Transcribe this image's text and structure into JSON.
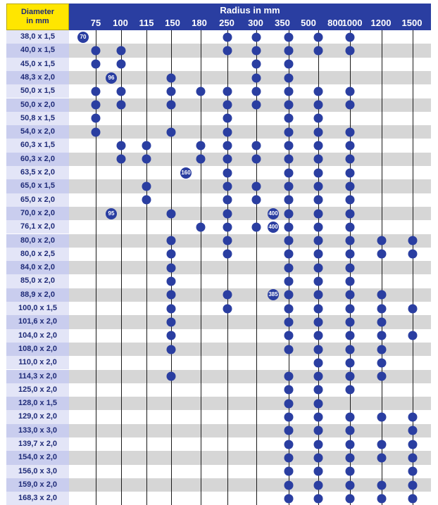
{
  "header": {
    "diameter_line1": "Diameter",
    "diameter_line2": "in mm",
    "title": "Radius in mm"
  },
  "radii": [
    "75",
    "100",
    "115",
    "150",
    "180",
    "250",
    "300",
    "350",
    "500",
    "800",
    "1000",
    "1200",
    "1500"
  ],
  "rows": [
    {
      "diameter": "38,0 x 1,5",
      "marks": {
        "75": "70",
        "250": true,
        "350": true,
        "500": true,
        "800": true,
        "1000": true
      }
    },
    {
      "diameter": "40,0 x 1,5",
      "marks": {
        "75": true,
        "100": true,
        "250": true,
        "350": true,
        "500": true,
        "800": true,
        "1000": true
      }
    },
    {
      "diameter": "45,0 x 1,5",
      "marks": {
        "75": true,
        "100": true,
        "350": true,
        "500": true
      }
    },
    {
      "diameter": "48,3 x 2,0",
      "marks": {
        "100": "96",
        "150": true,
        "350": true,
        "500": true
      }
    },
    {
      "diameter": "50,0 x 1,5",
      "marks": {
        "75": true,
        "100": true,
        "150": true,
        "180": true,
        "250": true,
        "350": true,
        "500": true,
        "800": true,
        "1000": true
      }
    },
    {
      "diameter": "50,0 x 2,0",
      "marks": {
        "75": true,
        "100": true,
        "150": true,
        "250": true,
        "350": true,
        "500": true,
        "800": true,
        "1000": true
      }
    },
    {
      "diameter": "50,8 x 1,5",
      "marks": {
        "75": true,
        "250": true,
        "500": true,
        "800": true
      }
    },
    {
      "diameter": "54,0 x 2,0",
      "marks": {
        "75": true,
        "150": true,
        "250": true,
        "500": true,
        "800": true,
        "1000": true
      }
    },
    {
      "diameter": "60,3 x 1,5",
      "marks": {
        "100": true,
        "115": true,
        "180": true,
        "250": true,
        "350": true,
        "500": true,
        "800": true,
        "1000": true
      }
    },
    {
      "diameter": "60,3 x 2,0",
      "marks": {
        "100": true,
        "115": true,
        "180": true,
        "250": true,
        "350": true,
        "500": true,
        "800": true,
        "1000": true
      }
    },
    {
      "diameter": "63,5 x 2,0",
      "marks": {
        "180": "160",
        "250": true,
        "500": true,
        "800": true,
        "1000": true
      }
    },
    {
      "diameter": "65,0 x 1,5",
      "marks": {
        "115": true,
        "250": true,
        "350": true,
        "500": true,
        "800": true,
        "1000": true
      }
    },
    {
      "diameter": "65,0 x 2,0",
      "marks": {
        "115": true,
        "250": true,
        "350": true,
        "500": true,
        "800": true,
        "1000": true
      }
    },
    {
      "diameter": "70,0 x 2,0",
      "marks": {
        "100": "95",
        "150": true,
        "250": true,
        "350": "400",
        "500": true,
        "800": true,
        "1000": true
      }
    },
    {
      "diameter": "76,1 x 2,0",
      "marks": {
        "180": true,
        "250": true,
        "300": true,
        "350": "400",
        "500": true,
        "800": true,
        "1000": true
      }
    },
    {
      "diameter": "80,0 x 2,0",
      "marks": {
        "150": true,
        "250": true,
        "500": true,
        "800": true,
        "1000": true,
        "1200": true,
        "1500": true
      }
    },
    {
      "diameter": "80,0 x 2,5",
      "marks": {
        "150": true,
        "250": true,
        "500": true,
        "800": true,
        "1000": true,
        "1200": true,
        "1500": true
      }
    },
    {
      "diameter": "84,0 x 2,0",
      "marks": {
        "150": true,
        "500": true,
        "800": true,
        "1000": true
      }
    },
    {
      "diameter": "85,0 x 2,0",
      "marks": {
        "150": true,
        "500": true,
        "800": true,
        "1000": true
      }
    },
    {
      "diameter": "88,9 x 2,0",
      "marks": {
        "150": true,
        "250": true,
        "350": "385",
        "500": true,
        "800": true,
        "1000": true,
        "1200": true
      }
    },
    {
      "diameter": "100,0 x 1,5",
      "marks": {
        "150": true,
        "250": true,
        "500": true,
        "800": true,
        "1000": true,
        "1200": true,
        "1500": true
      }
    },
    {
      "diameter": "101,6 x 2,0",
      "marks": {
        "150": true,
        "500": true,
        "800": true,
        "1000": true,
        "1200": true
      }
    },
    {
      "diameter": "104,0 x 2,0",
      "marks": {
        "150": true,
        "500": true,
        "800": true,
        "1000": true,
        "1200": true,
        "1500": true
      }
    },
    {
      "diameter": "108,0 x 2,0",
      "marks": {
        "150": true,
        "500": true,
        "800": true,
        "1000": true,
        "1200": true
      }
    },
    {
      "diameter": "110,0 x 2,0",
      "marks": {
        "800": true,
        "1000": true,
        "1200": true
      }
    },
    {
      "diameter": "114,3 x 2,0",
      "marks": {
        "150": true,
        "500": true,
        "800": true,
        "1000": true,
        "1200": true
      }
    },
    {
      "diameter": "125,0 x 2,0",
      "marks": {
        "500": true,
        "800": true,
        "1000": true
      }
    },
    {
      "diameter": "128,0 x 1,5",
      "marks": {
        "500": true,
        "800": true
      }
    },
    {
      "diameter": "129,0 x 2,0",
      "marks": {
        "500": true,
        "800": true,
        "1000": true,
        "1200": true,
        "1500": true
      }
    },
    {
      "diameter": "133,0 x 3,0",
      "marks": {
        "500": true,
        "800": true,
        "1000": true,
        "1500": true
      }
    },
    {
      "diameter": "139,7 x 2,0",
      "marks": {
        "500": true,
        "800": true,
        "1000": true,
        "1200": true,
        "1500": true
      }
    },
    {
      "diameter": "154,0 x 2,0",
      "marks": {
        "500": true,
        "800": true,
        "1000": true,
        "1200": true,
        "1500": true
      }
    },
    {
      "diameter": "156,0 x 3,0",
      "marks": {
        "500": true,
        "800": true,
        "1000": true,
        "1500": true
      }
    },
    {
      "diameter": "159,0 x 2,0",
      "marks": {
        "500": true,
        "800": true,
        "1000": true,
        "1200": true,
        "1500": true
      }
    },
    {
      "diameter": "168,3 x 2,0",
      "marks": {
        "500": true,
        "800": true,
        "1000": true,
        "1200": true,
        "1500": true
      }
    }
  ],
  "colors": {
    "header_yellow": "#ffe600",
    "header_blue": "#2a3ea1",
    "label_text": "#1f2b78",
    "row_label_light": "#e3e5f7",
    "row_label_dark": "#c9cdee",
    "row_grey": "#d6d6d6",
    "row_white": "#ffffff",
    "dot": "#2a3ea1"
  }
}
